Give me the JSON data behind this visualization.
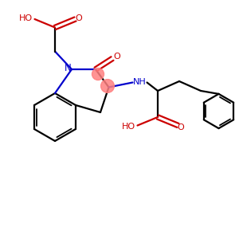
{
  "bg_color": "#ffffff",
  "bond_color": "#000000",
  "nitrogen_color": "#0000cc",
  "oxygen_color": "#cc0000",
  "highlight_color": "#ff8080",
  "fig_width": 3.0,
  "fig_height": 3.0,
  "dpi": 100,
  "xlim": [
    0,
    10
  ],
  "ylim": [
    0,
    10
  ]
}
